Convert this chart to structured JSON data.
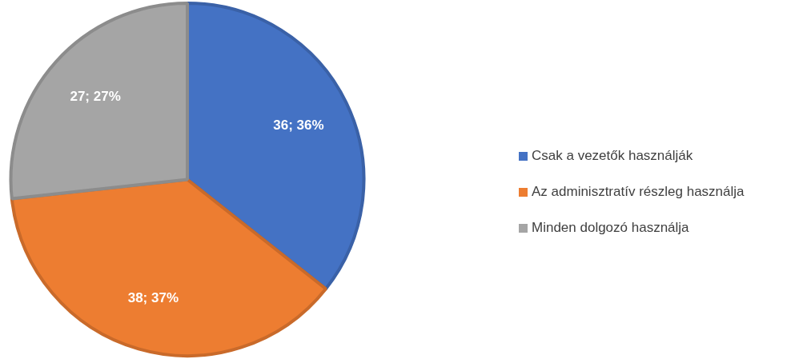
{
  "chart_data": {
    "type": "pie",
    "categories": [
      "Csak a vezetők használják",
      "Az adminisztratív részleg használja",
      "Minden dolgozó használja"
    ],
    "values": [
      36,
      38,
      27
    ],
    "colors": [
      "#4472c4",
      "#ed7d31",
      "#a5a5a5"
    ],
    "value_labels": [
      "36; 36%",
      "38; 37%",
      "27; 27%"
    ],
    "legend": "right"
  }
}
